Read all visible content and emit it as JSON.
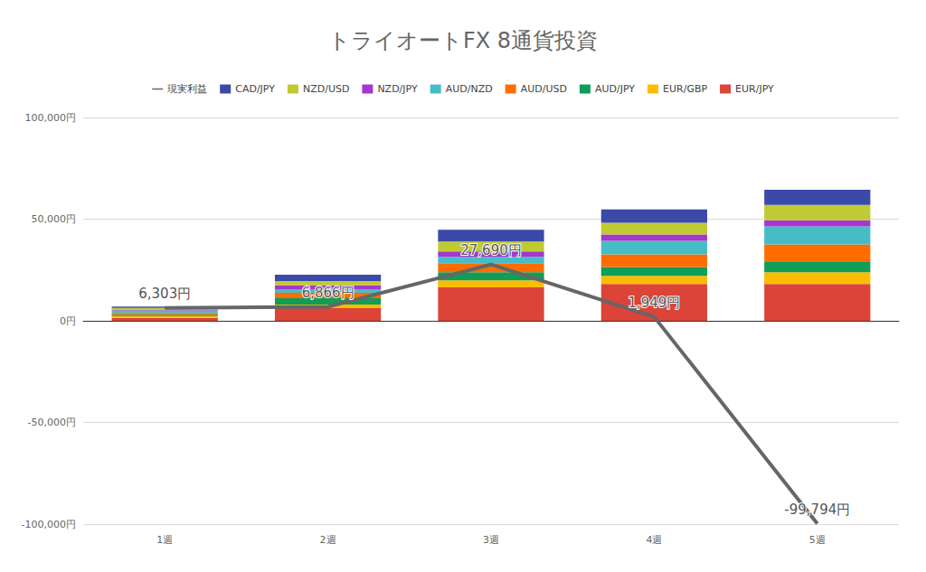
{
  "chart_data": {
    "type": "bar",
    "title": "トライオートFX 8通貨投資",
    "categories": [
      "1週",
      "2週",
      "3週",
      "4週",
      "5週"
    ],
    "stacked": true,
    "grid": true,
    "legend": "top",
    "series": [
      {
        "name": "現実利益",
        "type": "line",
        "color": "#666666",
        "data_labels": true,
        "values": [
          6303,
          6866,
          27690,
          1949,
          -99794
        ],
        "value_labels": [
          "6,303円",
          "6,866円",
          "27,690円",
          "1,949円",
          "-99,794円"
        ]
      },
      {
        "name": "CAD/JPY",
        "type": "bar",
        "color": "#3b4aa8",
        "values": [
          700,
          3100,
          5800,
          6600,
          7500
        ]
      },
      {
        "name": "NZD/USD",
        "type": "bar",
        "color": "#c0ca33",
        "values": [
          700,
          2200,
          4900,
          5800,
          7500
        ]
      },
      {
        "name": "NZD/JPY",
        "type": "bar",
        "color": "#a536cf",
        "values": [
          500,
          1800,
          2700,
          3100,
          3100
        ]
      },
      {
        "name": "AUD/NZD",
        "type": "bar",
        "color": "#46bdc6",
        "values": [
          1200,
          1800,
          3100,
          6600,
          8800
        ]
      },
      {
        "name": "AUD/USD",
        "type": "bar",
        "color": "#ff6d01",
        "values": [
          900,
          2700,
          4400,
          6200,
          8400
        ]
      },
      {
        "name": "AUD/JPY",
        "type": "bar",
        "color": "#0f9d58",
        "values": [
          700,
          3100,
          4000,
          4400,
          5300
        ]
      },
      {
        "name": "EUR/GBP",
        "type": "bar",
        "color": "#fbbc04",
        "values": [
          800,
          1800,
          3500,
          4000,
          5800
        ]
      },
      {
        "name": "EUR/JPY",
        "type": "bar",
        "color": "#db4437",
        "values": [
          1500,
          6200,
          16400,
          18100,
          18100
        ]
      }
    ],
    "ylim": [
      -100000,
      100000
    ],
    "yticks": [
      {
        "value": -100000,
        "label": "-100,000円"
      },
      {
        "value": -50000,
        "label": "-50,000円"
      },
      {
        "value": 0,
        "label": "0円"
      },
      {
        "value": 50000,
        "label": "50,000円"
      },
      {
        "value": 100000,
        "label": "100,000円"
      }
    ]
  }
}
